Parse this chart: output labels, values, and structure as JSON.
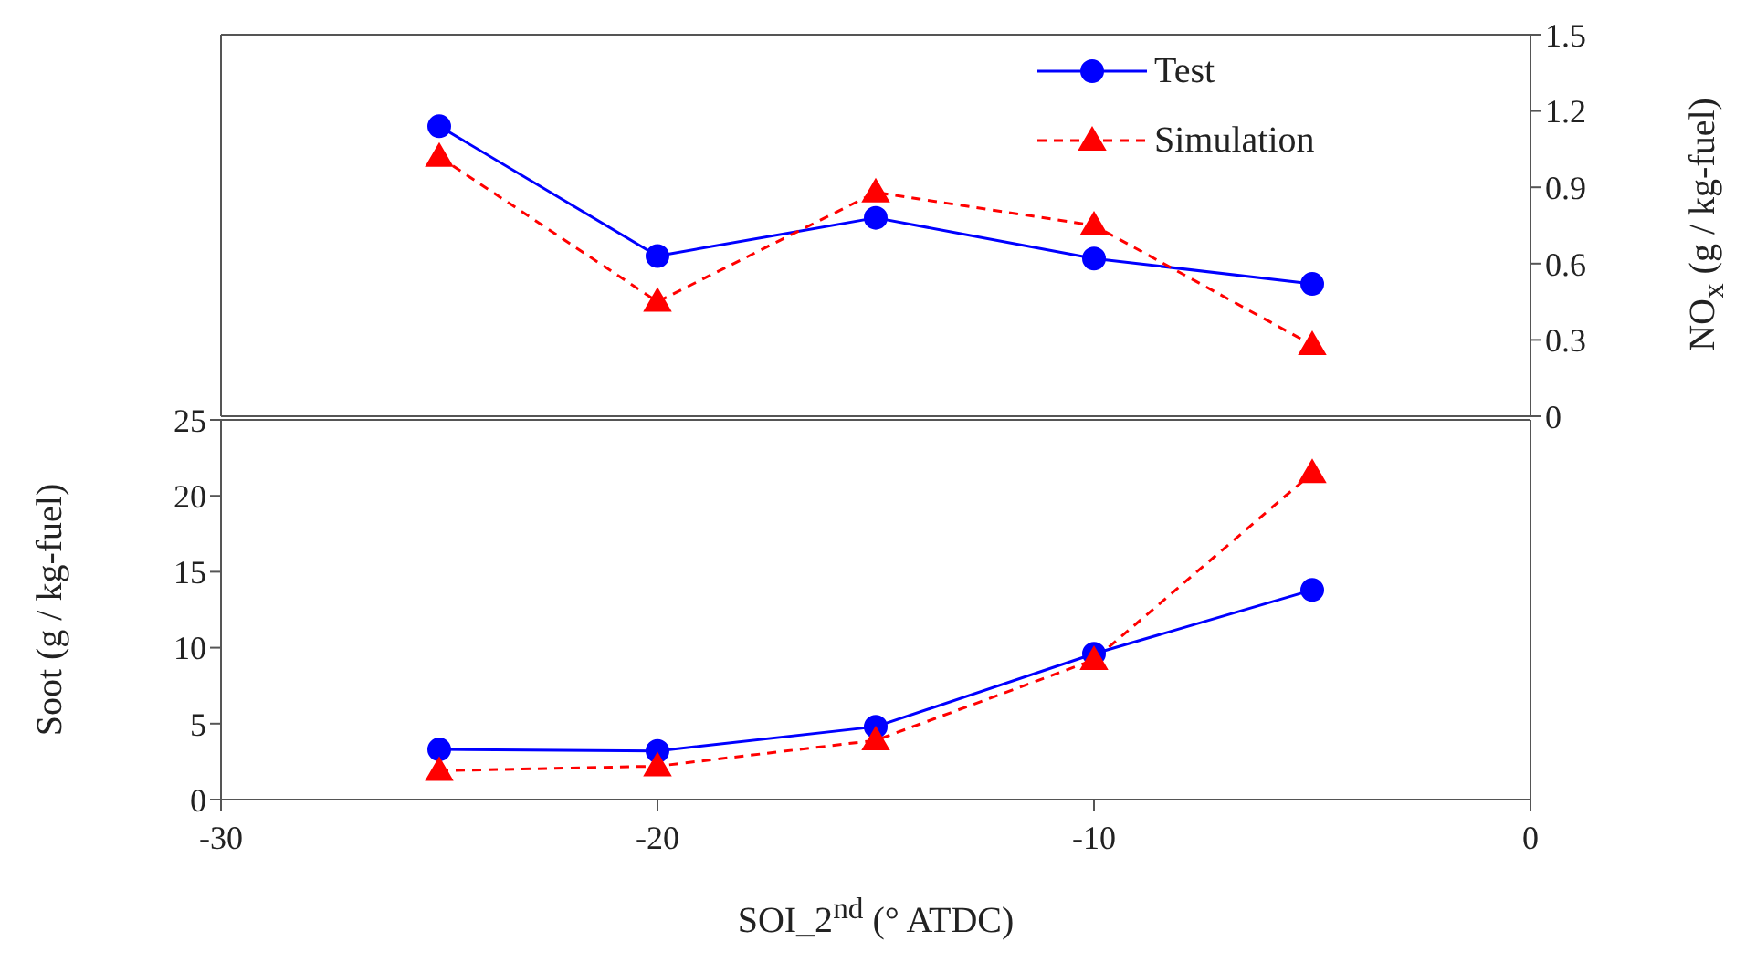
{
  "chart_data": [
    {
      "type": "line",
      "x": [
        -25,
        -20,
        -15,
        -10,
        -5
      ],
      "ylabel": "NO$_{x}$ (g / kg-fuel)",
      "xlim": [
        -30,
        0
      ],
      "xticks": [
        -30,
        -20,
        -10,
        0
      ],
      "ylim": [
        0,
        1.5
      ],
      "yticks": [
        0,
        0.3,
        0.6,
        0.9,
        1.2,
        1.5
      ],
      "tick_labels": "y",
      "legend": "top right",
      "series": [
        {
          "name": "Test",
          "color": "#0000ff",
          "marker": "circle",
          "line_style": "solid",
          "values": [
            1.14,
            0.63,
            0.78,
            0.62,
            0.52
          ]
        },
        {
          "name": "Simulation",
          "color": "#ff0000",
          "marker": "triangle",
          "line_style": "dashed",
          "values": [
            1.02,
            0.45,
            0.88,
            0.75,
            0.28
          ]
        }
      ]
    },
    {
      "type": "line",
      "x": [
        -25,
        -20,
        -15,
        -10,
        -5
      ],
      "xlabel": "SOI_2$^{nd}$ (° ATDC)",
      "ylabel": "Soot (g / kg-fuel)",
      "xlim": [
        -30,
        0
      ],
      "xticks": [
        -30,
        -20,
        -10,
        0
      ],
      "ylim": [
        0,
        25
      ],
      "yticks": [
        0,
        5,
        10,
        15,
        20,
        25
      ],
      "series": [
        {
          "color": "#0000ff",
          "marker": "circle",
          "line_style": "solid",
          "values": [
            3.3,
            3.2,
            4.8,
            9.6,
            13.8
          ]
        },
        {
          "color": "#ff0000",
          "marker": "triangle",
          "line_style": "dashed",
          "values": [
            1.9,
            2.2,
            3.9,
            9.2,
            21.5
          ]
        }
      ]
    }
  ]
}
